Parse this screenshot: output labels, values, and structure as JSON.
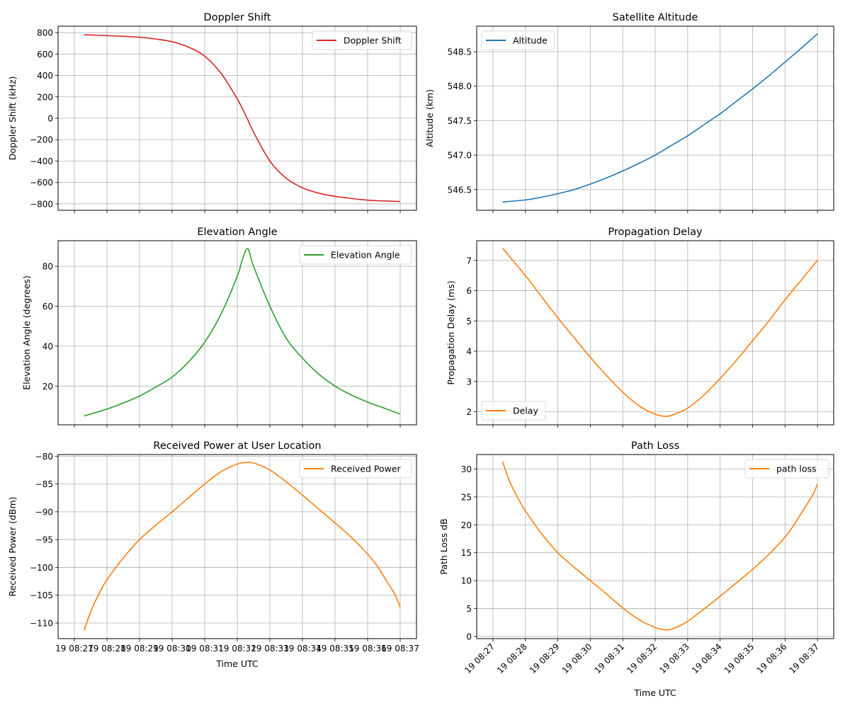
{
  "figure": {
    "shared_time_axis": {
      "xlabel": "Time UTC",
      "tick_labels": [
        "19 08:27",
        "19 08:28",
        "19 08:29",
        "19 08:30",
        "19 08:31",
        "19 08:32",
        "19 08:33",
        "19 08:34",
        "19 08:35",
        "19 08:36",
        "19 08:37"
      ],
      "tick_minutes": [
        27,
        28,
        29,
        30,
        31,
        32,
        33,
        34,
        35,
        36,
        37
      ],
      "xlim_minutes_after_0800": [
        26.5,
        37.5
      ]
    }
  },
  "chart_data": [
    {
      "id": "doppler",
      "type": "line",
      "title": "Doppler Shift",
      "xlabel": "",
      "ylabel": "Doppler Shift (kHz)",
      "ylim": [
        -860,
        860
      ],
      "yticks": [
        -800,
        -600,
        -400,
        -200,
        0,
        200,
        400,
        600,
        800
      ],
      "ytick_labels": [
        "−800",
        "−600",
        "−400",
        "−200",
        "0",
        "200",
        "400",
        "600",
        "800"
      ],
      "grid": true,
      "legend": "upper right",
      "show_xtick_labels": false,
      "series": [
        {
          "name": "Doppler Shift",
          "color": "#d62728",
          "x": [
            27.3,
            28,
            28.5,
            29,
            29.5,
            30,
            30.5,
            31,
            31.5,
            32,
            32.3,
            32.5,
            33,
            33.5,
            34,
            34.5,
            35,
            35.5,
            36,
            36.5,
            37
          ],
          "values": [
            780,
            772,
            765,
            757,
            740,
            715,
            665,
            580,
            420,
            180,
            0,
            -130,
            -400,
            -560,
            -650,
            -700,
            -730,
            -750,
            -765,
            -773,
            -778
          ]
        }
      ]
    },
    {
      "id": "altitude",
      "type": "line",
      "title": "Satellite Altitude",
      "xlabel": "",
      "ylabel": "Altitude (km)",
      "ylim": [
        546.2,
        548.87
      ],
      "yticks": [
        546.5,
        547.0,
        547.5,
        548.0,
        548.5
      ],
      "ytick_labels": [
        "546.5",
        "547.0",
        "547.5",
        "548.0",
        "548.5"
      ],
      "grid": true,
      "legend": "upper left",
      "show_xtick_labels": false,
      "series": [
        {
          "name": "Altitude",
          "color": "#1f77b4",
          "x": [
            27.3,
            28,
            28.5,
            29,
            29.5,
            30,
            30.5,
            31,
            31.5,
            32,
            32.5,
            33,
            33.5,
            34,
            34.5,
            35,
            35.5,
            36,
            36.5,
            37
          ],
          "values": [
            546.32,
            546.35,
            546.39,
            546.44,
            546.5,
            546.58,
            546.67,
            546.77,
            546.88,
            547.0,
            547.14,
            547.28,
            547.44,
            547.6,
            547.78,
            547.96,
            548.15,
            548.35,
            548.55,
            548.76
          ]
        }
      ]
    },
    {
      "id": "elevation",
      "type": "line",
      "title": "Elevation Angle",
      "xlabel": "",
      "ylabel": "Elevation Angle (degrees)",
      "ylim": [
        0.6,
        92.8
      ],
      "yticks": [
        20,
        40,
        60,
        80
      ],
      "ytick_labels": [
        "20",
        "40",
        "60",
        "80"
      ],
      "grid": true,
      "legend": "upper right",
      "show_xtick_labels": false,
      "series": [
        {
          "name": "Elevation Angle",
          "color": "#2ca02c",
          "x": [
            27.3,
            28,
            28.5,
            29,
            29.5,
            30,
            30.5,
            31,
            31.5,
            32,
            32.15,
            32.32,
            32.5,
            33,
            33.5,
            34,
            34.5,
            35,
            35.5,
            36,
            36.5,
            37
          ],
          "values": [
            5.0,
            8.5,
            11.5,
            15.0,
            19.5,
            24.5,
            32,
            42,
            56,
            75,
            83,
            88.8,
            80,
            60,
            44,
            34,
            26,
            20,
            15.5,
            12,
            9,
            6
          ]
        }
      ]
    },
    {
      "id": "delay",
      "type": "line",
      "title": "Propagation Delay",
      "xlabel": "",
      "ylabel": "Propagation Delay (ms)",
      "ylim": [
        1.57,
        7.65
      ],
      "yticks": [
        2,
        3,
        4,
        5,
        6,
        7
      ],
      "ytick_labels": [
        "2",
        "3",
        "4",
        "5",
        "6",
        "7"
      ],
      "grid": true,
      "legend": "lower left",
      "show_xtick_labels": false,
      "series": [
        {
          "name": "Delay",
          "color": "#ff7f0e",
          "x": [
            27.3,
            28,
            28.5,
            29,
            29.5,
            30,
            30.5,
            31,
            31.5,
            32,
            32.33,
            32.6,
            33,
            33.5,
            34,
            34.5,
            35,
            35.5,
            36,
            36.5,
            37
          ],
          "values": [
            7.4,
            6.5,
            5.8,
            5.1,
            4.45,
            3.8,
            3.2,
            2.65,
            2.2,
            1.92,
            1.85,
            1.92,
            2.12,
            2.55,
            3.1,
            3.7,
            4.35,
            5.0,
            5.7,
            6.35,
            7.0
          ]
        }
      ]
    },
    {
      "id": "power",
      "type": "line",
      "title": "Received Power at User Location",
      "xlabel": "Time UTC",
      "ylabel": "Received Power (dBm)",
      "ylim": [
        -112.8,
        -79.7
      ],
      "yticks": [
        -110,
        -105,
        -100,
        -95,
        -90,
        -85,
        -80
      ],
      "ytick_labels": [
        "−110",
        "−105",
        "−100",
        "−95",
        "−90",
        "−85",
        "−80"
      ],
      "grid": true,
      "legend": "upper right",
      "show_xtick_labels": true,
      "xtick_rotation": 0,
      "series": [
        {
          "name": "Received Power",
          "color": "#ff7f0e",
          "x": [
            27.3,
            27.5,
            27.75,
            28,
            28.5,
            29,
            29.5,
            30,
            30.5,
            31,
            31.5,
            32,
            32.33,
            32.6,
            33,
            33.5,
            34,
            34.5,
            35,
            35.5,
            36,
            36.3,
            36.6,
            36.85,
            37
          ],
          "values": [
            -111.3,
            -108,
            -104.8,
            -102.2,
            -98.3,
            -95.0,
            -92.4,
            -90.0,
            -87.5,
            -85.0,
            -82.8,
            -81.4,
            -81.1,
            -81.4,
            -82.5,
            -84.6,
            -87.0,
            -89.5,
            -92.0,
            -94.6,
            -97.6,
            -99.8,
            -102.6,
            -105.0,
            -107.2
          ]
        }
      ]
    },
    {
      "id": "pathloss",
      "type": "line",
      "title": "Path Loss",
      "xlabel": "Time UTC",
      "ylabel": "Path Loss dB",
      "ylim": [
        -0.4,
        32.6
      ],
      "yticks": [
        0,
        5,
        10,
        15,
        20,
        25,
        30
      ],
      "ytick_labels": [
        "0",
        "5",
        "10",
        "15",
        "20",
        "25",
        "30"
      ],
      "grid": true,
      "legend": "upper right",
      "show_xtick_labels": true,
      "xtick_rotation": -45,
      "series": [
        {
          "name": "path loss",
          "color": "#ff7f0e",
          "x": [
            27.3,
            27.5,
            27.75,
            28,
            28.5,
            29,
            29.5,
            30,
            30.5,
            31,
            31.5,
            32,
            32.33,
            32.6,
            33,
            33.5,
            34,
            34.5,
            35,
            35.5,
            36,
            36.3,
            36.6,
            36.85,
            37
          ],
          "values": [
            31.3,
            28.0,
            25.0,
            22.5,
            18.4,
            15.0,
            12.4,
            10.0,
            7.6,
            5.1,
            3.0,
            1.6,
            1.15,
            1.5,
            2.7,
            4.9,
            7.2,
            9.6,
            12.0,
            14.7,
            17.8,
            20.2,
            23.0,
            25.3,
            27.3
          ]
        }
      ]
    }
  ]
}
